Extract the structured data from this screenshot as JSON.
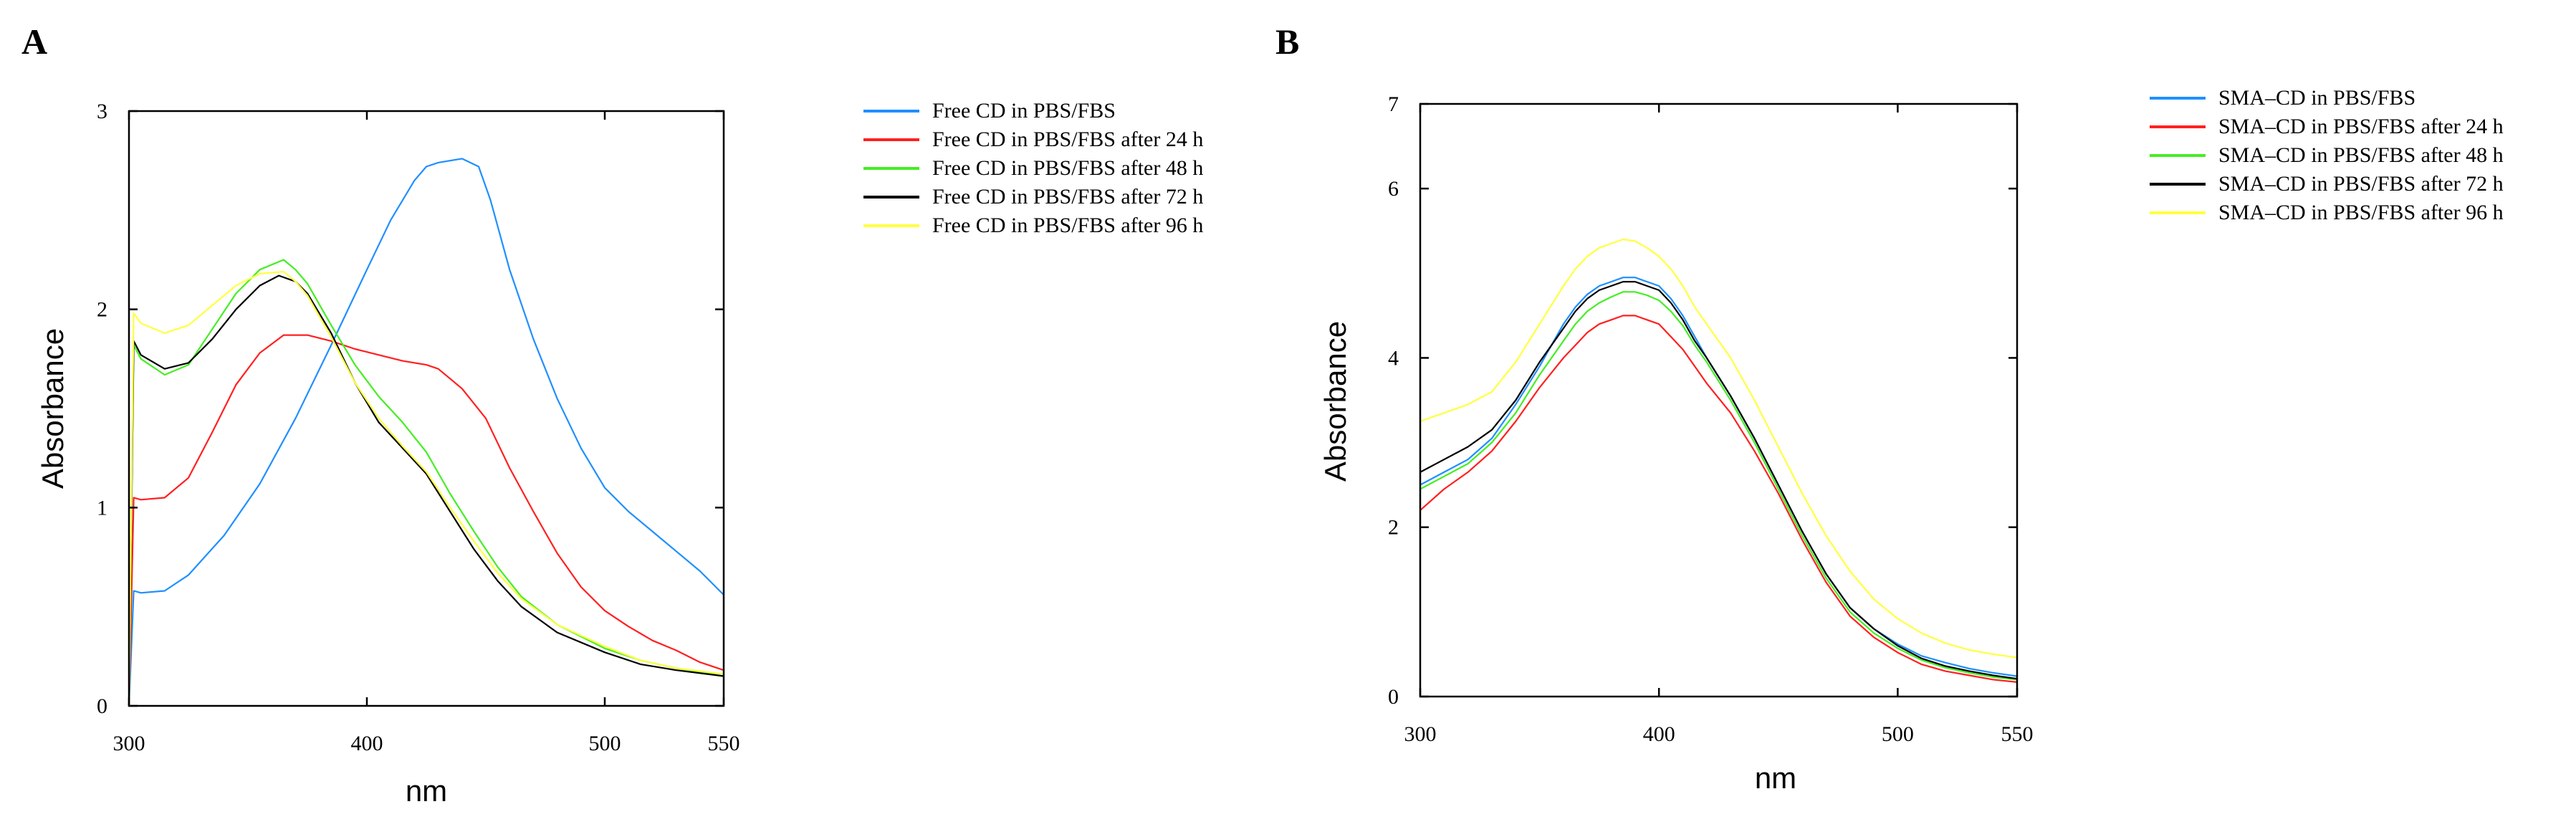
{
  "chart_data": [
    {
      "panel": "A",
      "type": "line",
      "xlabel": "nm",
      "ylabel": "Absorbance",
      "xlim": [
        300,
        550
      ],
      "ylim": [
        0,
        3
      ],
      "xticks": [
        300,
        400,
        500,
        550
      ],
      "yticks": [
        0,
        1,
        2,
        3
      ],
      "legend_position": "right-outside",
      "series": [
        {
          "name": "Free CD in PBS/FBS",
          "color": "#1f8fff",
          "x": [
            300,
            302,
            305,
            315,
            325,
            340,
            355,
            370,
            385,
            400,
            410,
            420,
            425,
            430,
            440,
            447,
            452,
            460,
            470,
            480,
            490,
            500,
            510,
            520,
            530,
            540,
            550
          ],
          "y": [
            0,
            0.58,
            0.57,
            0.58,
            0.66,
            0.86,
            1.12,
            1.45,
            1.82,
            2.2,
            2.45,
            2.65,
            2.72,
            2.74,
            2.76,
            2.72,
            2.55,
            2.2,
            1.85,
            1.55,
            1.3,
            1.1,
            0.98,
            0.88,
            0.78,
            0.68,
            0.56
          ]
        },
        {
          "name": "Free CD in PBS/FBS after 24 h",
          "color": "#ff2020",
          "x": [
            300,
            302,
            305,
            315,
            325,
            335,
            345,
            355,
            365,
            375,
            385,
            395,
            405,
            415,
            425,
            430,
            440,
            450,
            460,
            470,
            480,
            490,
            500,
            510,
            520,
            530,
            540,
            550
          ],
          "y": [
            0,
            1.05,
            1.04,
            1.05,
            1.15,
            1.38,
            1.62,
            1.78,
            1.87,
            1.87,
            1.84,
            1.8,
            1.77,
            1.74,
            1.72,
            1.7,
            1.6,
            1.45,
            1.2,
            0.98,
            0.77,
            0.6,
            0.48,
            0.4,
            0.33,
            0.28,
            0.22,
            0.18
          ]
        },
        {
          "name": "Free CD in PBS/FBS after 48 h",
          "color": "#44ee22",
          "x": [
            300,
            302,
            305,
            315,
            325,
            335,
            345,
            355,
            365,
            370,
            375,
            385,
            395,
            405,
            415,
            425,
            435,
            445,
            455,
            465,
            480,
            500,
            515,
            530,
            550
          ],
          "y": [
            0,
            1.82,
            1.75,
            1.67,
            1.72,
            1.9,
            2.08,
            2.2,
            2.25,
            2.2,
            2.13,
            1.92,
            1.72,
            1.56,
            1.43,
            1.28,
            1.07,
            0.88,
            0.7,
            0.55,
            0.41,
            0.29,
            0.23,
            0.19,
            0.15
          ]
        },
        {
          "name": "Free CD in PBS/FBS after 72 h",
          "color": "#000000",
          "x": [
            300,
            302,
            305,
            315,
            325,
            335,
            345,
            355,
            363,
            370,
            375,
            385,
            395,
            405,
            415,
            425,
            435,
            445,
            455,
            465,
            480,
            500,
            515,
            530,
            550
          ],
          "y": [
            0,
            1.84,
            1.77,
            1.7,
            1.73,
            1.85,
            2.0,
            2.12,
            2.17,
            2.14,
            2.08,
            1.88,
            1.63,
            1.43,
            1.3,
            1.17,
            0.98,
            0.79,
            0.63,
            0.5,
            0.37,
            0.27,
            0.21,
            0.18,
            0.15
          ]
        },
        {
          "name": "Free CD in PBS/FBS after 96 h",
          "color": "#ffff40",
          "x": [
            300,
            302,
            305,
            315,
            325,
            335,
            345,
            355,
            365,
            370,
            375,
            385,
            395,
            405,
            415,
            425,
            435,
            445,
            455,
            465,
            480,
            500,
            515,
            530,
            550
          ],
          "y": [
            0,
            1.98,
            1.93,
            1.88,
            1.92,
            2.02,
            2.12,
            2.18,
            2.19,
            2.14,
            2.07,
            1.86,
            1.63,
            1.45,
            1.31,
            1.18,
            1.0,
            0.83,
            0.67,
            0.54,
            0.41,
            0.3,
            0.23,
            0.19,
            0.16
          ]
        }
      ]
    },
    {
      "panel": "B",
      "type": "line",
      "xlabel": "nm",
      "ylabel": "Absorbance",
      "xlim": [
        300,
        550
      ],
      "ylim": [
        0,
        7
      ],
      "xticks": [
        300,
        400,
        500,
        550
      ],
      "yticks": [
        0,
        2,
        4,
        6,
        7
      ],
      "legend_position": "right-outside",
      "series": [
        {
          "name": "SMA–CD in PBS/FBS",
          "color": "#1f8fff",
          "x": [
            300,
            310,
            320,
            330,
            340,
            350,
            360,
            365,
            370,
            375,
            380,
            385,
            390,
            395,
            400,
            405,
            410,
            415,
            420,
            430,
            440,
            450,
            460,
            470,
            480,
            490,
            500,
            510,
            520,
            530,
            540,
            550
          ],
          "y": [
            2.5,
            2.65,
            2.8,
            3.05,
            3.45,
            3.9,
            4.4,
            4.6,
            4.75,
            4.85,
            4.9,
            4.95,
            4.95,
            4.9,
            4.85,
            4.7,
            4.5,
            4.25,
            4.0,
            3.55,
            3.05,
            2.5,
            1.95,
            1.45,
            1.05,
            0.8,
            0.62,
            0.48,
            0.4,
            0.33,
            0.28,
            0.24
          ]
        },
        {
          "name": "SMA–CD in PBS/FBS after 24 h",
          "color": "#ff2020",
          "x": [
            300,
            310,
            320,
            330,
            340,
            350,
            360,
            365,
            370,
            375,
            380,
            385,
            390,
            395,
            400,
            405,
            410,
            415,
            420,
            430,
            440,
            450,
            460,
            470,
            480,
            490,
            500,
            510,
            520,
            530,
            540,
            550
          ],
          "y": [
            2.2,
            2.45,
            2.65,
            2.9,
            3.25,
            3.65,
            4.0,
            4.15,
            4.3,
            4.4,
            4.45,
            4.5,
            4.5,
            4.45,
            4.4,
            4.25,
            4.1,
            3.9,
            3.7,
            3.35,
            2.9,
            2.4,
            1.85,
            1.35,
            0.95,
            0.7,
            0.52,
            0.38,
            0.3,
            0.25,
            0.2,
            0.17
          ]
        },
        {
          "name": "SMA–CD in PBS/FBS after 48 h",
          "color": "#44ee22",
          "x": [
            300,
            310,
            320,
            330,
            340,
            350,
            360,
            365,
            370,
            375,
            380,
            385,
            390,
            395,
            400,
            405,
            410,
            415,
            420,
            430,
            440,
            450,
            460,
            470,
            480,
            490,
            500,
            510,
            520,
            530,
            540,
            550
          ],
          "y": [
            2.45,
            2.6,
            2.75,
            3.0,
            3.35,
            3.8,
            4.2,
            4.4,
            4.55,
            4.65,
            4.72,
            4.78,
            4.78,
            4.74,
            4.68,
            4.55,
            4.38,
            4.15,
            3.95,
            3.5,
            3.0,
            2.45,
            1.9,
            1.4,
            1.0,
            0.75,
            0.57,
            0.43,
            0.34,
            0.28,
            0.23,
            0.2
          ]
        },
        {
          "name": "SMA–CD in PBS/FBS after 72 h",
          "color": "#000000",
          "x": [
            300,
            310,
            320,
            330,
            340,
            350,
            360,
            365,
            370,
            375,
            380,
            385,
            390,
            395,
            400,
            405,
            410,
            415,
            420,
            430,
            440,
            450,
            460,
            470,
            480,
            490,
            500,
            510,
            520,
            530,
            540,
            550
          ],
          "y": [
            2.65,
            2.8,
            2.95,
            3.15,
            3.5,
            3.95,
            4.35,
            4.55,
            4.7,
            4.8,
            4.85,
            4.9,
            4.9,
            4.85,
            4.8,
            4.65,
            4.45,
            4.2,
            4.0,
            3.55,
            3.05,
            2.5,
            1.95,
            1.45,
            1.05,
            0.8,
            0.6,
            0.45,
            0.36,
            0.3,
            0.25,
            0.21
          ]
        },
        {
          "name": "SMA–CD in PBS/FBS after 96 h",
          "color": "#ffff40",
          "x": [
            300,
            310,
            320,
            330,
            340,
            350,
            360,
            365,
            370,
            375,
            380,
            385,
            390,
            395,
            400,
            405,
            410,
            415,
            420,
            430,
            440,
            450,
            460,
            470,
            480,
            490,
            500,
            510,
            520,
            530,
            540,
            550
          ],
          "y": [
            3.25,
            3.35,
            3.45,
            3.6,
            3.95,
            4.4,
            4.85,
            5.05,
            5.2,
            5.3,
            5.35,
            5.4,
            5.38,
            5.3,
            5.2,
            5.05,
            4.85,
            4.6,
            4.4,
            4.0,
            3.5,
            2.95,
            2.4,
            1.9,
            1.48,
            1.15,
            0.92,
            0.75,
            0.63,
            0.55,
            0.5,
            0.46
          ]
        }
      ]
    }
  ]
}
